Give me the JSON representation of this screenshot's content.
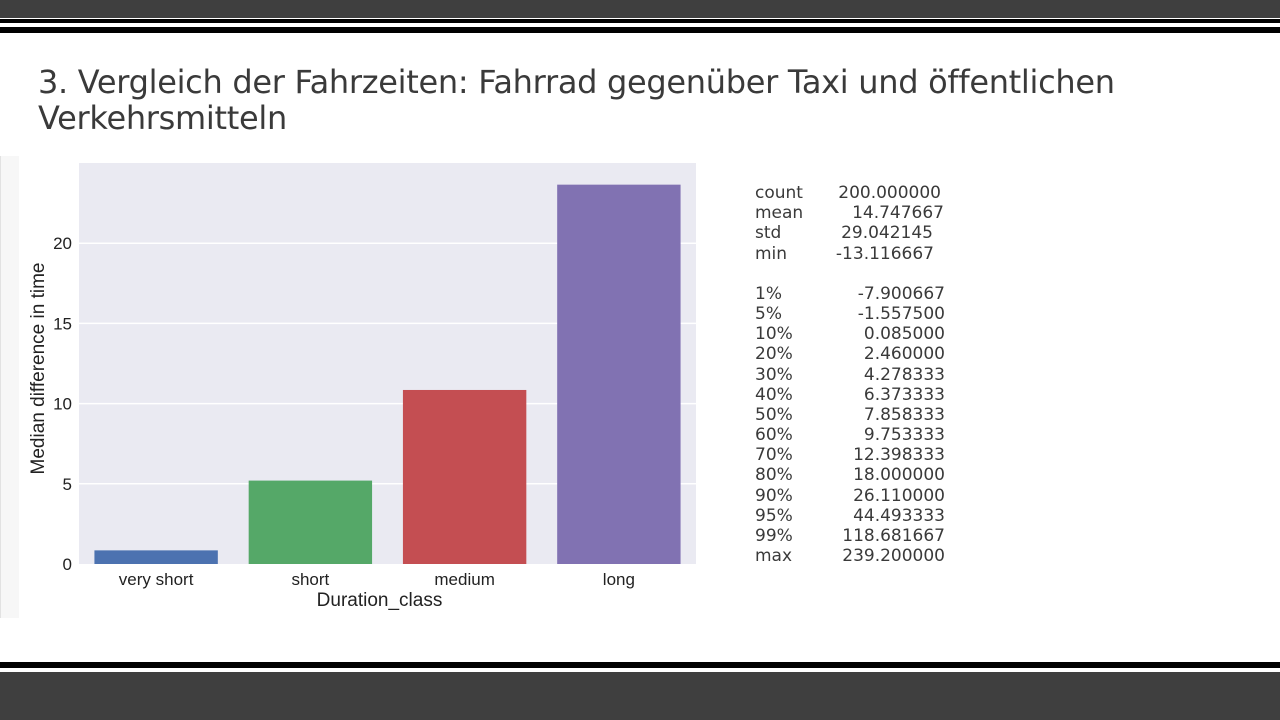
{
  "slide": {
    "title": "3.  Vergleich der Fahrzeiten: Fahrrad gegenüber Taxi und öffentlichen Verkehrsmitteln"
  },
  "colors": {
    "chrome_dark": "#3f3f3f",
    "rule": "#000000",
    "plot_background": "#eaeaf2",
    "gridline": "#ffffff",
    "text": "#3a3a3a"
  },
  "chart_data": {
    "type": "bar",
    "categories": [
      "very short",
      "short",
      "medium",
      "long"
    ],
    "values": [
      0.85,
      5.2,
      10.85,
      23.65
    ],
    "colors": [
      "#4c72b0",
      "#55a868",
      "#c44e52",
      "#8172b2"
    ],
    "title": "",
    "xlabel": "Duration_class",
    "ylabel": "Median difference in time",
    "ylim": [
      0,
      25
    ],
    "yticks": [
      0,
      5,
      10,
      15,
      20
    ],
    "grid": true,
    "style": "seaborn-darkgrid"
  },
  "stats": {
    "rows": [
      {
        "label": "count",
        "value": "200.000000"
      },
      {
        "label": "mean",
        "value": "14.747667"
      },
      {
        "label": "std",
        "value": "29.042145"
      },
      {
        "label": "min",
        "value": "-13.116667"
      },
      {
        "label": "1%",
        "value": "-7.900667"
      },
      {
        "label": "5%",
        "value": "-1.557500"
      },
      {
        "label": "10%",
        "value": "0.085000"
      },
      {
        "label": "20%",
        "value": "2.460000"
      },
      {
        "label": "30%",
        "value": "4.278333"
      },
      {
        "label": "40%",
        "value": "6.373333"
      },
      {
        "label": "50%",
        "value": "7.858333"
      },
      {
        "label": "60%",
        "value": "9.753333"
      },
      {
        "label": "70%",
        "value": "12.398333"
      },
      {
        "label": "80%",
        "value": "18.000000"
      },
      {
        "label": "90%",
        "value": "26.110000"
      },
      {
        "label": "95%",
        "value": "44.493333"
      },
      {
        "label": "99%",
        "value": "118.681667"
      },
      {
        "label": "max",
        "value": "239.200000"
      }
    ]
  }
}
